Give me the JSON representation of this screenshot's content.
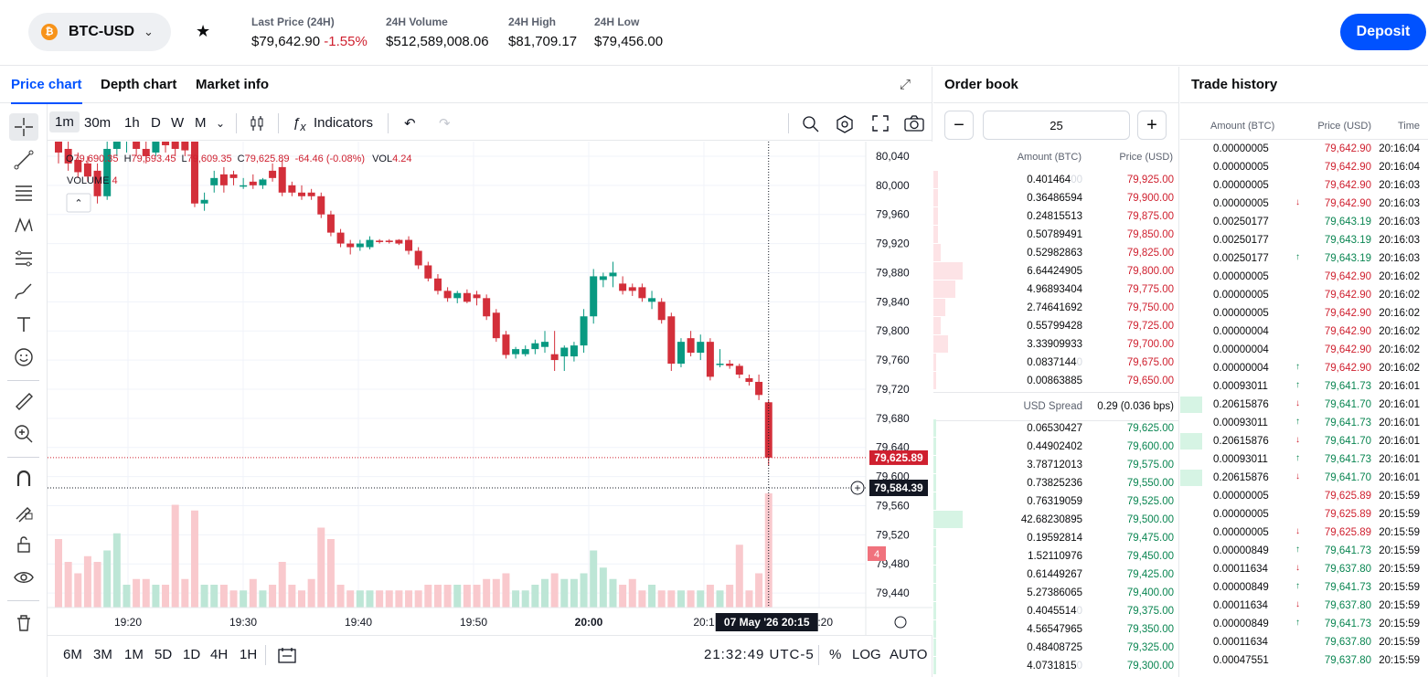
{
  "header": {
    "pair": "BTC-USD",
    "coin_symbol": "₿",
    "stats": [
      {
        "label": "Last Price (24H)",
        "value": "$79,642.90",
        "change": "-1.55%"
      },
      {
        "label": "24H Volume",
        "value": "$512,589,008.06"
      },
      {
        "label": "24H High",
        "value": "$81,709.17"
      },
      {
        "label": "24H Low",
        "value": "$79,456.00"
      }
    ],
    "deposit_label": "Deposit"
  },
  "chart_tabs": [
    "Price chart",
    "Depth chart",
    "Market info"
  ],
  "toolbar": {
    "intervals": [
      "1m",
      "30m",
      "1h",
      "D",
      "W",
      "M"
    ],
    "indicators_label": "Indicators"
  },
  "legend": {
    "o_label": "O",
    "o": "79,690.35",
    "h_label": "H",
    "h": "79,693.45",
    "l_label": "L",
    "l": "79,609.35",
    "c_label": "C",
    "c": "79,625.89",
    "change": "-64.46 (-0.08%)",
    "vol_label": "VOL",
    "vol": "4.24",
    "volume_label": "VOLUME",
    "volume_value": "4"
  },
  "chart_data": {
    "type": "candlestick",
    "x_ticks": [
      "19:20",
      "19:30",
      "19:40",
      "19:50",
      "20:00",
      "20:1",
      "20:20"
    ],
    "y_ticks": [
      "80,040",
      "80,000",
      "79,960",
      "79,920",
      "79,880",
      "79,840",
      "79,800",
      "79,760",
      "79,720",
      "79,680",
      "79,640",
      "79,600",
      "79,560",
      "79,520",
      "79,480",
      "79,440"
    ],
    "ylim": [
      79420,
      80060
    ],
    "last_price": "79,625.89",
    "crosshair_price": "79,584.39",
    "crosshair_time": "07 May '26   20:15",
    "volume_last": "4",
    "candles": [
      {
        "o": 80065,
        "h": 80080,
        "l": 80030,
        "c": 80045,
        "v": 12
      },
      {
        "o": 80050,
        "h": 80070,
        "l": 80020,
        "c": 80030,
        "v": 8
      },
      {
        "o": 80035,
        "h": 80045,
        "l": 80010,
        "c": 80018,
        "v": 6
      },
      {
        "o": 80030,
        "h": 80040,
        "l": 80005,
        "c": 80012,
        "v": 9
      },
      {
        "o": 80020,
        "h": 80030,
        "l": 79975,
        "c": 79985,
        "v": 8
      },
      {
        "o": 79985,
        "h": 80065,
        "l": 79980,
        "c": 80050,
        "v": 10
      },
      {
        "o": 80050,
        "h": 80070,
        "l": 80040,
        "c": 80060,
        "v": 13
      },
      {
        "o": 80060,
        "h": 80070,
        "l": 80045,
        "c": 80065,
        "v": 4
      },
      {
        "o": 80060,
        "h": 80070,
        "l": 80040,
        "c": 80050,
        "v": 5
      },
      {
        "o": 80050,
        "h": 80065,
        "l": 80030,
        "c": 80040,
        "v": 5
      },
      {
        "o": 80045,
        "h": 80075,
        "l": 80040,
        "c": 80060,
        "v": 4
      },
      {
        "o": 80060,
        "h": 80070,
        "l": 80045,
        "c": 80055,
        "v": 4
      },
      {
        "o": 80065,
        "h": 80075,
        "l": 80040,
        "c": 80050,
        "v": 18
      },
      {
        "o": 80060,
        "h": 80070,
        "l": 80040,
        "c": 80048,
        "v": 5
      },
      {
        "o": 80060,
        "h": 80070,
        "l": 79970,
        "c": 79975,
        "v": 17
      },
      {
        "o": 79975,
        "h": 79990,
        "l": 79965,
        "c": 79980,
        "v": 4
      },
      {
        "o": 80000,
        "h": 80020,
        "l": 79990,
        "c": 80010,
        "v": 4
      },
      {
        "o": 80015,
        "h": 80025,
        "l": 79990,
        "c": 80000,
        "v": 4
      },
      {
        "o": 80015,
        "h": 80020,
        "l": 80000,
        "c": 80010,
        "v": 3
      },
      {
        "o": 80000,
        "h": 80010,
        "l": 79995,
        "c": 80000,
        "v": 3
      },
      {
        "o": 80005,
        "h": 80015,
        "l": 79995,
        "c": 80000,
        "v": 5
      },
      {
        "o": 80000,
        "h": 80010,
        "l": 79995,
        "c": 80008,
        "v": 3
      },
      {
        "o": 80020,
        "h": 80030,
        "l": 80005,
        "c": 80010,
        "v": 4
      },
      {
        "o": 80025,
        "h": 80035,
        "l": 79985,
        "c": 79990,
        "v": 8
      },
      {
        "o": 80000,
        "h": 80005,
        "l": 79985,
        "c": 79990,
        "v": 4
      },
      {
        "o": 79990,
        "h": 80000,
        "l": 79980,
        "c": 79985,
        "v": 3
      },
      {
        "o": 79990,
        "h": 79995,
        "l": 79980,
        "c": 79985,
        "v": 5
      },
      {
        "o": 79985,
        "h": 79990,
        "l": 79955,
        "c": 79960,
        "v": 14
      },
      {
        "o": 79960,
        "h": 79965,
        "l": 79930,
        "c": 79935,
        "v": 12
      },
      {
        "o": 79935,
        "h": 79940,
        "l": 79915,
        "c": 79920,
        "v": 4
      },
      {
        "o": 79920,
        "h": 79925,
        "l": 79905,
        "c": 79915,
        "v": 3
      },
      {
        "o": 79915,
        "h": 79925,
        "l": 79910,
        "c": 79920,
        "v": 3
      },
      {
        "o": 79915,
        "h": 79930,
        "l": 79912,
        "c": 79925,
        "v": 3
      },
      {
        "o": 79924,
        "h": 79926,
        "l": 79920,
        "c": 79922,
        "v": 3
      },
      {
        "o": 79924,
        "h": 79926,
        "l": 79920,
        "c": 79922,
        "v": 3
      },
      {
        "o": 79925,
        "h": 79926,
        "l": 79918,
        "c": 79920,
        "v": 3
      },
      {
        "o": 79925,
        "h": 79930,
        "l": 79905,
        "c": 79910,
        "v": 3
      },
      {
        "o": 79910,
        "h": 79915,
        "l": 79885,
        "c": 79890,
        "v": 3
      },
      {
        "o": 79890,
        "h": 79895,
        "l": 79868,
        "c": 79872,
        "v": 4
      },
      {
        "o": 79872,
        "h": 79878,
        "l": 79850,
        "c": 79855,
        "v": 4
      },
      {
        "o": 79855,
        "h": 79860,
        "l": 79840,
        "c": 79845,
        "v": 4
      },
      {
        "o": 79845,
        "h": 79855,
        "l": 79838,
        "c": 79852,
        "v": 4
      },
      {
        "o": 79852,
        "h": 79857,
        "l": 79838,
        "c": 79840,
        "v": 4
      },
      {
        "o": 79850,
        "h": 79855,
        "l": 79835,
        "c": 79845,
        "v": 4
      },
      {
        "o": 79845,
        "h": 79850,
        "l": 79815,
        "c": 79820,
        "v": 5
      },
      {
        "o": 79825,
        "h": 79830,
        "l": 79785,
        "c": 79790,
        "v": 5
      },
      {
        "o": 79795,
        "h": 79800,
        "l": 79762,
        "c": 79767,
        "v": 6
      },
      {
        "o": 79768,
        "h": 79778,
        "l": 79762,
        "c": 79775,
        "v": 3
      },
      {
        "o": 79768,
        "h": 79780,
        "l": 79765,
        "c": 79775,
        "v": 3
      },
      {
        "o": 79775,
        "h": 79788,
        "l": 79768,
        "c": 79783,
        "v": 4
      },
      {
        "o": 79778,
        "h": 79800,
        "l": 79770,
        "c": 79785,
        "v": 5
      },
      {
        "o": 79768,
        "h": 79800,
        "l": 79745,
        "c": 79760,
        "v": 6
      },
      {
        "o": 79765,
        "h": 79780,
        "l": 79745,
        "c": 79777,
        "v": 5
      },
      {
        "o": 79765,
        "h": 79785,
        "l": 79758,
        "c": 79780,
        "v": 5
      },
      {
        "o": 79780,
        "h": 79830,
        "l": 79770,
        "c": 79820,
        "v": 6
      },
      {
        "o": 79820,
        "h": 79885,
        "l": 79810,
        "c": 79875,
        "v": 10
      },
      {
        "o": 79870,
        "h": 79880,
        "l": 79860,
        "c": 79875,
        "v": 7
      },
      {
        "o": 79875,
        "h": 79895,
        "l": 79860,
        "c": 79880,
        "v": 5
      },
      {
        "o": 79865,
        "h": 79875,
        "l": 79850,
        "c": 79855,
        "v": 4
      },
      {
        "o": 79860,
        "h": 79865,
        "l": 79848,
        "c": 79855,
        "v": 5
      },
      {
        "o": 79860,
        "h": 79865,
        "l": 79840,
        "c": 79845,
        "v": 3
      },
      {
        "o": 79840,
        "h": 79855,
        "l": 79830,
        "c": 79845,
        "v": 4
      },
      {
        "o": 79840,
        "h": 79845,
        "l": 79810,
        "c": 79815,
        "v": 3
      },
      {
        "o": 79820,
        "h": 79825,
        "l": 79745,
        "c": 79755,
        "v": 3
      },
      {
        "o": 79755,
        "h": 79790,
        "l": 79750,
        "c": 79785,
        "v": 3
      },
      {
        "o": 79790,
        "h": 79800,
        "l": 79765,
        "c": 79770,
        "v": 3
      },
      {
        "o": 79770,
        "h": 79795,
        "l": 79760,
        "c": 79785,
        "v": 3
      },
      {
        "o": 79785,
        "h": 79790,
        "l": 79732,
        "c": 79737,
        "v": 4
      },
      {
        "o": 79755,
        "h": 79775,
        "l": 79750,
        "c": 79755,
        "v": 3
      },
      {
        "o": 79755,
        "h": 79760,
        "l": 79748,
        "c": 79752,
        "v": 4
      },
      {
        "o": 79752,
        "h": 79755,
        "l": 79735,
        "c": 79740,
        "v": 11
      },
      {
        "o": 79735,
        "h": 79740,
        "l": 79725,
        "c": 79730,
        "v": 3
      },
      {
        "o": 79730,
        "h": 79740,
        "l": 79705,
        "c": 79712,
        "v": 6
      },
      {
        "o": 79702,
        "h": 79705,
        "l": 79615,
        "c": 79626,
        "v": 20
      }
    ]
  },
  "bottombar": {
    "ranges": [
      "6M",
      "3M",
      "1M",
      "5D",
      "1D",
      "4H",
      "1H"
    ],
    "clock": "21:32:49 UTC-5",
    "percent": "%",
    "log": "LOG",
    "auto": "AUTO"
  },
  "orderbook": {
    "title": "Order book",
    "aggregation": "25",
    "minus": "−",
    "plus": "+",
    "col_amount": "Amount (BTC)",
    "col_price": "Price (USD)",
    "asks": [
      {
        "amount": "0.401464",
        "amount_faded": "00",
        "price": "79,925.00",
        "depth": 0.02
      },
      {
        "amount": "0.36486594",
        "amount_faded": "",
        "price": "79,900.00",
        "depth": 0.02
      },
      {
        "amount": "0.24815513",
        "amount_faded": "",
        "price": "79,875.00",
        "depth": 0.02
      },
      {
        "amount": "0.50789491",
        "amount_faded": "",
        "price": "79,850.00",
        "depth": 0.02
      },
      {
        "amount": "0.52982863",
        "amount_faded": "",
        "price": "79,825.00",
        "depth": 0.03
      },
      {
        "amount": "6.64424905",
        "amount_faded": "",
        "price": "79,800.00",
        "depth": 0.12
      },
      {
        "amount": "4.96893404",
        "amount_faded": "",
        "price": "79,775.00",
        "depth": 0.09
      },
      {
        "amount": "2.74641692",
        "amount_faded": "",
        "price": "79,750.00",
        "depth": 0.05
      },
      {
        "amount": "0.55799428",
        "amount_faded": "",
        "price": "79,725.00",
        "depth": 0.03
      },
      {
        "amount": "3.33909933",
        "amount_faded": "",
        "price": "79,700.00",
        "depth": 0.06
      },
      {
        "amount": "0.0837144",
        "amount_faded": "0",
        "price": "79,675.00",
        "depth": 0.01
      },
      {
        "amount": "0.00863885",
        "amount_faded": "",
        "price": "79,650.00",
        "depth": 0.01
      }
    ],
    "spread_label": "USD Spread",
    "spread_value": "0.29 (0.036 bps)",
    "bids": [
      {
        "amount": "0.06530427",
        "amount_faded": "",
        "price": "79,625.00",
        "depth": 0.01
      },
      {
        "amount": "0.44902402",
        "amount_faded": "",
        "price": "79,600.00",
        "depth": 0.01
      },
      {
        "amount": "3.78712013",
        "amount_faded": "",
        "price": "79,575.00",
        "depth": 0.01
      },
      {
        "amount": "0.73825236",
        "amount_faded": "",
        "price": "79,550.00",
        "depth": 0.01
      },
      {
        "amount": "0.76319059",
        "amount_faded": "",
        "price": "79,525.00",
        "depth": 0.01
      },
      {
        "amount": "42.68230895",
        "amount_faded": "",
        "price": "79,500.00",
        "depth": 0.12
      },
      {
        "amount": "0.19592814",
        "amount_faded": "",
        "price": "79,475.00",
        "depth": 0.01
      },
      {
        "amount": "1.52110976",
        "amount_faded": "",
        "price": "79,450.00",
        "depth": 0.01
      },
      {
        "amount": "0.61449267",
        "amount_faded": "",
        "price": "79,425.00",
        "depth": 0.01
      },
      {
        "amount": "5.27386065",
        "amount_faded": "",
        "price": "79,400.00",
        "depth": 0.01
      },
      {
        "amount": "0.4045514",
        "amount_faded": "0",
        "price": "79,375.00",
        "depth": 0.01
      },
      {
        "amount": "4.56547965",
        "amount_faded": "",
        "price": "79,350.00",
        "depth": 0.01
      },
      {
        "amount": "0.48408725",
        "amount_faded": "",
        "price": "79,325.00",
        "depth": 0.01
      },
      {
        "amount": "4.0731815",
        "amount_faded": "0",
        "price": "79,300.00",
        "depth": 0.01
      }
    ]
  },
  "trade_history": {
    "title": "Trade history",
    "col_amount": "Amount (BTC)",
    "col_price": "Price (USD)",
    "col_time": "Time",
    "rows": [
      {
        "amount": "0.00000005",
        "price": "79,642.90",
        "time": "20:16:04",
        "side": "sell",
        "arrow": "",
        "bar": 0
      },
      {
        "amount": "0.00000005",
        "price": "79,642.90",
        "time": "20:16:04",
        "side": "sell",
        "arrow": "",
        "bar": 0
      },
      {
        "amount": "0.00000005",
        "price": "79,642.90",
        "time": "20:16:03",
        "side": "sell",
        "arrow": "",
        "bar": 0
      },
      {
        "amount": "0.00000005",
        "price": "79,642.90",
        "time": "20:16:03",
        "side": "sell",
        "arrow": "↓",
        "bar": 0
      },
      {
        "amount": "0.00250177",
        "price": "79,643.19",
        "time": "20:16:03",
        "side": "buy",
        "arrow": "",
        "bar": 0
      },
      {
        "amount": "0.00250177",
        "price": "79,643.19",
        "time": "20:16:03",
        "side": "buy",
        "arrow": "",
        "bar": 0
      },
      {
        "amount": "0.00250177",
        "price": "79,643.19",
        "time": "20:16:03",
        "side": "buy",
        "arrow": "↑",
        "bar": 0
      },
      {
        "amount": "0.00000005",
        "price": "79,642.90",
        "time": "20:16:02",
        "side": "sell",
        "arrow": "",
        "bar": 0
      },
      {
        "amount": "0.00000005",
        "price": "79,642.90",
        "time": "20:16:02",
        "side": "sell",
        "arrow": "",
        "bar": 0
      },
      {
        "amount": "0.00000005",
        "price": "79,642.90",
        "time": "20:16:02",
        "side": "sell",
        "arrow": "",
        "bar": 0
      },
      {
        "amount": "0.00000004",
        "price": "79,642.90",
        "time": "20:16:02",
        "side": "sell",
        "arrow": "",
        "bar": 0
      },
      {
        "amount": "0.00000004",
        "price": "79,642.90",
        "time": "20:16:02",
        "side": "sell",
        "arrow": "",
        "bar": 0
      },
      {
        "amount": "0.00000004",
        "price": "79,642.90",
        "time": "20:16:02",
        "side": "sell",
        "arrow": "↑",
        "bar": 0
      },
      {
        "amount": "0.00093011",
        "price": "79,641.73",
        "time": "20:16:01",
        "side": "buy",
        "arrow": "↑",
        "bar": 0
      },
      {
        "amount": "0.20615876",
        "price": "79,641.70",
        "time": "20:16:01",
        "side": "buy",
        "arrow": "↓",
        "bar": 1
      },
      {
        "amount": "0.00093011",
        "price": "79,641.73",
        "time": "20:16:01",
        "side": "buy",
        "arrow": "↑",
        "bar": 0
      },
      {
        "amount": "0.20615876",
        "price": "79,641.70",
        "time": "20:16:01",
        "side": "buy",
        "arrow": "↓",
        "bar": 1
      },
      {
        "amount": "0.00093011",
        "price": "79,641.73",
        "time": "20:16:01",
        "side": "buy",
        "arrow": "↑",
        "bar": 0
      },
      {
        "amount": "0.20615876",
        "price": "79,641.70",
        "time": "20:16:01",
        "side": "buy",
        "arrow": "↓",
        "bar": 1
      },
      {
        "amount": "0.00000005",
        "price": "79,625.89",
        "time": "20:15:59",
        "side": "sell",
        "arrow": "",
        "bar": 0
      },
      {
        "amount": "0.00000005",
        "price": "79,625.89",
        "time": "20:15:59",
        "side": "sell",
        "arrow": "",
        "bar": 0
      },
      {
        "amount": "0.00000005",
        "price": "79,625.89",
        "time": "20:15:59",
        "side": "sell",
        "arrow": "↓",
        "bar": 0
      },
      {
        "amount": "0.00000849",
        "price": "79,641.73",
        "time": "20:15:59",
        "side": "buy",
        "arrow": "↑",
        "bar": 0
      },
      {
        "amount": "0.00011634",
        "price": "79,637.80",
        "time": "20:15:59",
        "side": "buy",
        "arrow": "↓",
        "bar": 0
      },
      {
        "amount": "0.00000849",
        "price": "79,641.73",
        "time": "20:15:59",
        "side": "buy",
        "arrow": "↑",
        "bar": 0
      },
      {
        "amount": "0.00011634",
        "price": "79,637.80",
        "time": "20:15:59",
        "side": "buy",
        "arrow": "↓",
        "bar": 0
      },
      {
        "amount": "0.00000849",
        "price": "79,641.73",
        "time": "20:15:59",
        "side": "buy",
        "arrow": "↑",
        "bar": 0
      },
      {
        "amount": "0.00011634",
        "price": "79,637.80",
        "time": "20:15:59",
        "side": "buy",
        "arrow": "",
        "bar": 0
      },
      {
        "amount": "0.00047551",
        "price": "79,637.80",
        "time": "20:15:59",
        "side": "buy",
        "arrow": "",
        "bar": 0
      }
    ]
  },
  "colors": {
    "up": "#098551",
    "down": "#cf202f",
    "brand": "#0052ff",
    "candle_up": "#089981",
    "candle_down": "#d32f3a"
  }
}
